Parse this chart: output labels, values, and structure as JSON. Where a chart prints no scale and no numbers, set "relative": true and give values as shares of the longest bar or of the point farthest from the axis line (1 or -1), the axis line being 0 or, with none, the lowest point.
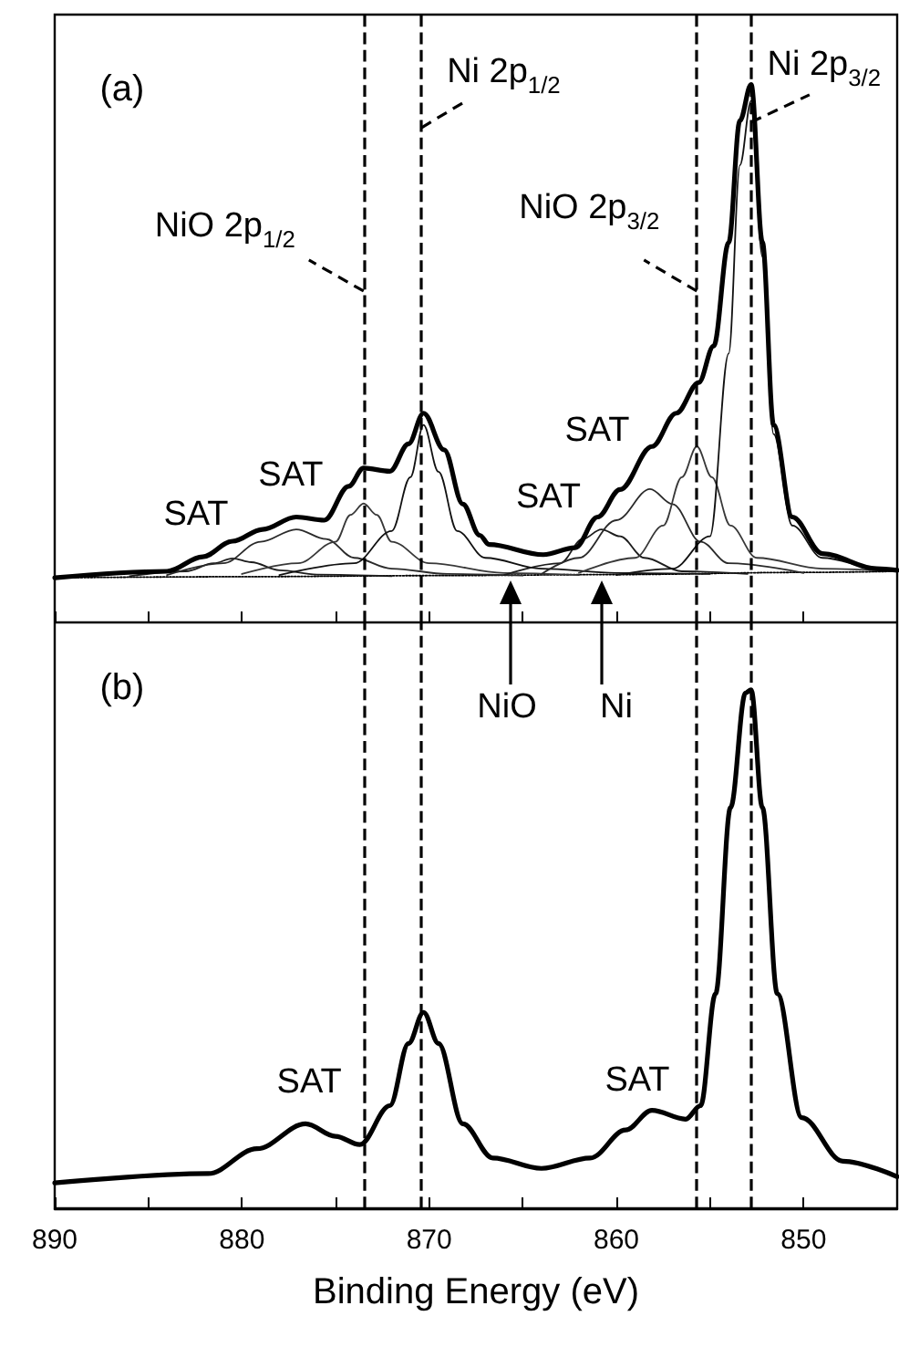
{
  "chart_data": [
    {
      "type": "line",
      "relative": true,
      "xlim": [
        890,
        845
      ],
      "tick_labels": false,
      "marker": "none",
      "xticks": [
        890,
        {
          "value": 885,
          "label": null
        },
        880,
        {
          "value": 875,
          "label": null
        },
        870,
        {
          "value": 865,
          "label": null
        },
        860,
        {
          "value": 855,
          "label": null
        },
        850
      ],
      "series": [
        {
          "color": "#000000",
          "line_style": "solid",
          "x": [
            890,
            884,
            882.1,
            880.5,
            878.9,
            877.1,
            875.6,
            874.3,
            873.5,
            872.1,
            871.1,
            870.3,
            869.2,
            868.2,
            867.3,
            866.8,
            863.9,
            862.2,
            861,
            859.8,
            858.1,
            856.8,
            855.6,
            854.8,
            854,
            853.4,
            852.8,
            852.2,
            851.6,
            850.6,
            849,
            846.1,
            845
          ],
          "values": [
            0.083,
            0.095,
            0.122,
            0.151,
            0.173,
            0.196,
            0.19,
            0.253,
            0.287,
            0.281,
            0.332,
            0.389,
            0.321,
            0.22,
            0.162,
            0.145,
            0.126,
            0.139,
            0.196,
            0.247,
            0.327,
            0.389,
            0.446,
            0.514,
            0.706,
            0.933,
            1,
            0.707,
            0.367,
            0.196,
            0.128,
            0.1,
            0.097
          ]
        },
        {
          "color": "#000000",
          "line_style": "dotted",
          "x": [
            890,
            880,
            870,
            860,
            850,
            845
          ],
          "values": [
            0.083,
            0.085,
            0.087,
            0.089,
            0.093,
            0.095
          ]
        },
        {
          "color": "#1c1c1c",
          "line_style": "solid",
          "x": [
            886,
            883,
            881.5,
            880.5,
            879.5,
            878,
            876,
            872
          ],
          "values": [
            0.086,
            0.095,
            0.11,
            0.119,
            0.112,
            0.097,
            0.089,
            0.086
          ]
        },
        {
          "color": "#2a2a2a",
          "line_style": "solid",
          "x": [
            884,
            881,
            879,
            877.1,
            875.5,
            874,
            872,
            869,
            865
          ],
          "values": [
            0.088,
            0.11,
            0.15,
            0.173,
            0.155,
            0.12,
            0.1,
            0.09,
            0.087
          ]
        },
        {
          "color": "#383838",
          "line_style": "solid",
          "x": [
            880,
            877,
            875,
            874.2,
            873.5,
            872.8,
            872,
            870,
            866,
            862
          ],
          "values": [
            0.09,
            0.11,
            0.15,
            0.2,
            0.221,
            0.2,
            0.15,
            0.11,
            0.092,
            0.088
          ]
        },
        {
          "color": "#111111",
          "line_style": "solid",
          "x": [
            878,
            874,
            872,
            871,
            870.3,
            869.5,
            868.5,
            867,
            864,
            860,
            855
          ],
          "values": [
            0.088,
            0.11,
            0.17,
            0.27,
            0.367,
            0.28,
            0.17,
            0.12,
            0.1,
            0.092,
            0.09
          ]
        },
        {
          "color": "#1c1c1c",
          "line_style": "solid",
          "x": [
            866,
            863,
            861.8,
            860.8,
            859.8,
            858.5,
            856.5,
            853
          ],
          "values": [
            0.088,
            0.11,
            0.155,
            0.173,
            0.16,
            0.12,
            0.095,
            0.09
          ]
        },
        {
          "color": "#2a2a2a",
          "line_style": "solid",
          "x": [
            864,
            862,
            860,
            858.2,
            857,
            855.5,
            854,
            850
          ],
          "values": [
            0.09,
            0.12,
            0.19,
            0.248,
            0.22,
            0.15,
            0.11,
            0.092
          ]
        },
        {
          "color": "#383838",
          "line_style": "solid",
          "x": [
            862,
            859,
            857.5,
            856.5,
            855.7,
            854.9,
            853.9,
            852.5,
            849,
            845
          ],
          "values": [
            0.092,
            0.12,
            0.18,
            0.27,
            0.327,
            0.27,
            0.18,
            0.12,
            0.1,
            0.095
          ]
        },
        {
          "color": "#111111",
          "line_style": "solid",
          "x": [
            860,
            857,
            855,
            854,
            853.4,
            852.8,
            852.2,
            851.6,
            850.6,
            849,
            846,
            845
          ],
          "values": [
            0.088,
            0.1,
            0.16,
            0.5,
            0.85,
            0.97,
            0.68,
            0.35,
            0.18,
            0.12,
            0.1,
            0.097
          ]
        }
      ],
      "ref_lines": [
        {
          "axis": "x",
          "value": 873.5,
          "color": "#000000",
          "line_style": "dashed"
        },
        {
          "axis": "x",
          "value": 870.4,
          "color": "#000000",
          "line_style": "dashed"
        },
        {
          "axis": "x",
          "value": 855.7,
          "color": "#000000",
          "line_style": "dashed"
        },
        {
          "axis": "x",
          "value": 852.8,
          "color": "#000000",
          "line_style": "dashed"
        }
      ],
      "annotations": [
        "(a)",
        {
          "text": "Ni 2p$_{1/2}$",
          "x": 870.4,
          "y": 0.92
        },
        {
          "text": "NiO 2p$_{1/2}$",
          "x": 873.5,
          "y": 0.616
        },
        {
          "text": "NiO 2p$_{3/2}$",
          "x": 855.7,
          "y": 0.616
        },
        {
          "text": "Ni 2p$_{3/2}$",
          "x": 852.8,
          "y": 0.93
        },
        {
          "text": "SAT",
          "x": 880.5,
          "y": 0.151
        },
        {
          "text": "SAT",
          "x": 877.1,
          "y": 0.196
        },
        {
          "text": "SAT",
          "x": 861,
          "y": 0.196
        },
        {
          "text": "SAT",
          "x": 858.1,
          "y": 0.327
        },
        "NiO",
        "Ni"
      ]
    },
    {
      "type": "line",
      "relative": true,
      "xlim": [
        890,
        845
      ],
      "tick_labels": "x",
      "marker": "none",
      "xlabel": "Binding Energy (eV)",
      "xticks": [
        890,
        {
          "value": 885,
          "label": null
        },
        880,
        {
          "value": 875,
          "label": null
        },
        870,
        {
          "value": 865,
          "label": null
        },
        860,
        {
          "value": 855,
          "label": null
        },
        850
      ],
      "series": [
        {
          "color": "#000000",
          "line_style": "solid",
          "x": [
            890,
            881.8,
            879.2,
            876.6,
            875,
            873.7,
            872.1,
            871.1,
            870.3,
            869.5,
            868.2,
            866.6,
            864,
            861.4,
            859.5,
            858.1,
            856.3,
            855.5,
            854.7,
            853.9,
            853.1,
            852.8,
            852.2,
            851.4,
            850.1,
            847.9,
            845
          ],
          "values": [
            0.049,
            0.067,
            0.115,
            0.163,
            0.139,
            0.123,
            0.198,
            0.318,
            0.378,
            0.318,
            0.163,
            0.097,
            0.077,
            0.097,
            0.151,
            0.189,
            0.172,
            0.198,
            0.414,
            0.773,
            0.994,
            1,
            0.773,
            0.414,
            0.175,
            0.091,
            0.061
          ]
        }
      ],
      "ref_lines": [
        {
          "axis": "x",
          "value": 873.5,
          "color": "#000000",
          "line_style": "dashed"
        },
        {
          "axis": "x",
          "value": 870.4,
          "color": "#000000",
          "line_style": "dashed"
        },
        {
          "axis": "x",
          "value": 855.7,
          "color": "#000000",
          "line_style": "dashed"
        },
        {
          "axis": "x",
          "value": 852.8,
          "color": "#000000",
          "line_style": "dashed"
        }
      ],
      "annotations": [
        "(b)",
        {
          "text": "SAT",
          "x": 876.6,
          "y": 0.163
        },
        {
          "text": "SAT",
          "x": 858.1,
          "y": 0.189
        }
      ]
    }
  ]
}
